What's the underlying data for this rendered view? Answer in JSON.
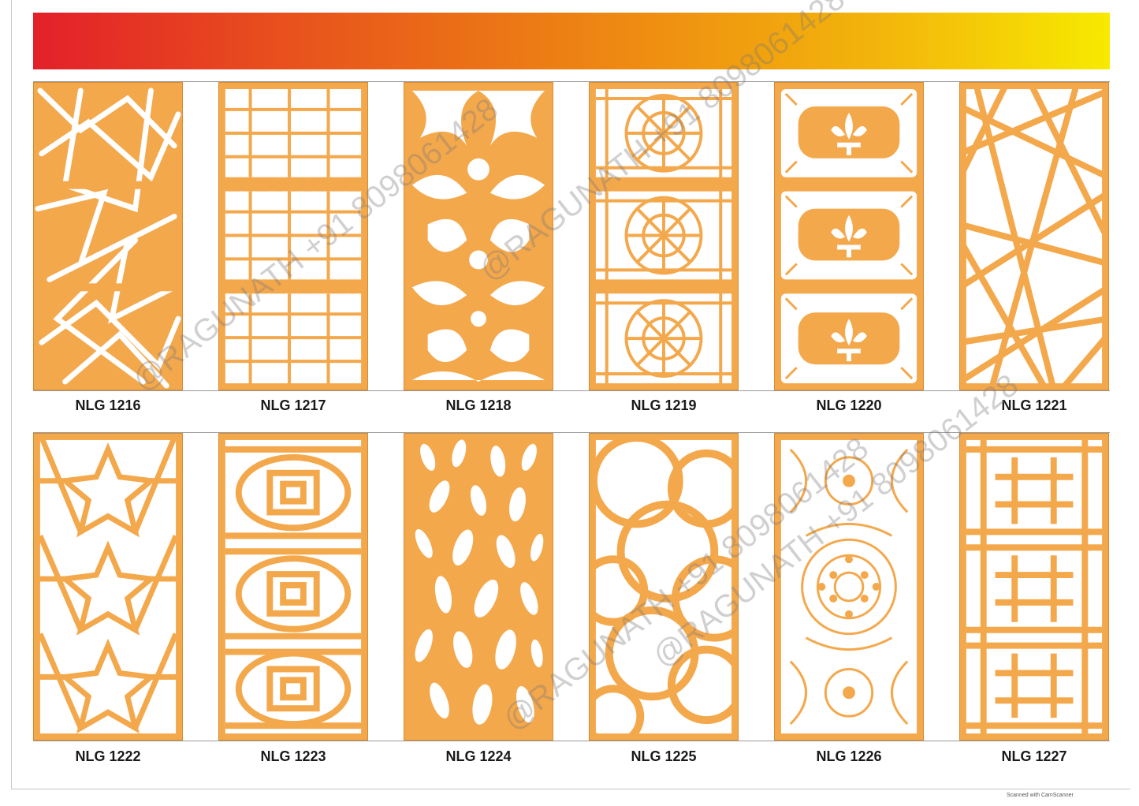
{
  "catalog": {
    "row1": [
      {
        "code": "NLG 1216",
        "pattern": "shattered-shards"
      },
      {
        "code": "NLG 1217",
        "pattern": "hexagon-lattice"
      },
      {
        "code": "NLG 1218",
        "pattern": "floral-scroll"
      },
      {
        "code": "NLG 1219",
        "pattern": "islamic-star"
      },
      {
        "code": "NLG 1220",
        "pattern": "fleur-de-lis"
      },
      {
        "code": "NLG 1221",
        "pattern": "crossing-lines"
      }
    ],
    "row2": [
      {
        "code": "NLG 1222",
        "pattern": "star-lattice"
      },
      {
        "code": "NLG 1223",
        "pattern": "chinese-fret"
      },
      {
        "code": "NLG 1224",
        "pattern": "leaf-petals"
      },
      {
        "code": "NLG 1225",
        "pattern": "interlocking-rings"
      },
      {
        "code": "NLG 1226",
        "pattern": "damask-medallion"
      },
      {
        "code": "NLG 1227",
        "pattern": "cross-fret"
      }
    ]
  },
  "watermark": {
    "text": "@RAGUNATH +91 8098061428"
  },
  "footer": {
    "note": "Scanned with CamScanner"
  },
  "colors": {
    "panel": "#f4a84c",
    "banner_start": "#e3202a",
    "banner_end": "#f7ea00"
  }
}
